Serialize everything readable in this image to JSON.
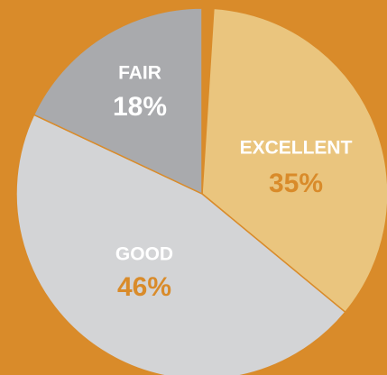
{
  "chart_data": {
    "type": "pie",
    "categories": [
      "EXCELLENT",
      "GOOD",
      "FAIR"
    ],
    "values": [
      35,
      46,
      18
    ],
    "value_labels": [
      "35%",
      "46%",
      "18%"
    ],
    "colors": [
      "#eac57e",
      "#d3d4d6",
      "#a9aaad"
    ]
  }
}
